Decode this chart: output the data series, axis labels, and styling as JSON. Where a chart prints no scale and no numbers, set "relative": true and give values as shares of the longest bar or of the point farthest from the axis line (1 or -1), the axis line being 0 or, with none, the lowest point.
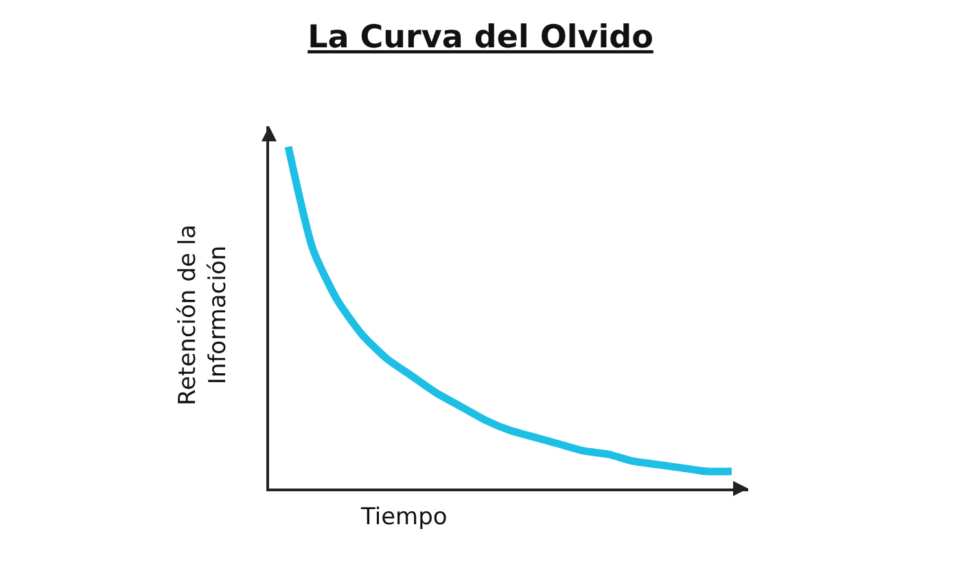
{
  "chart_data": {
    "type": "line",
    "title": "La Curva del Olvido",
    "xlabel": "Tiempo",
    "ylabel": "Retención de la\nInformación",
    "relative": true,
    "categories": [
      null,
      null,
      null,
      null,
      null,
      null,
      null,
      null,
      null,
      null,
      null,
      null,
      null,
      null,
      null,
      null,
      null,
      null,
      null
    ],
    "series": [
      {
        "color": "#1ebfe4",
        "values": [
          1.0,
          0.7,
          0.55,
          0.45,
          0.38,
          0.33,
          0.28,
          0.24,
          0.2,
          0.17,
          0.15,
          0.13,
          0.11,
          0.1,
          0.08,
          0.07,
          0.06,
          0.05,
          0.05
        ]
      }
    ],
    "grid": false,
    "marker": "none",
    "line_style": "solid"
  }
}
